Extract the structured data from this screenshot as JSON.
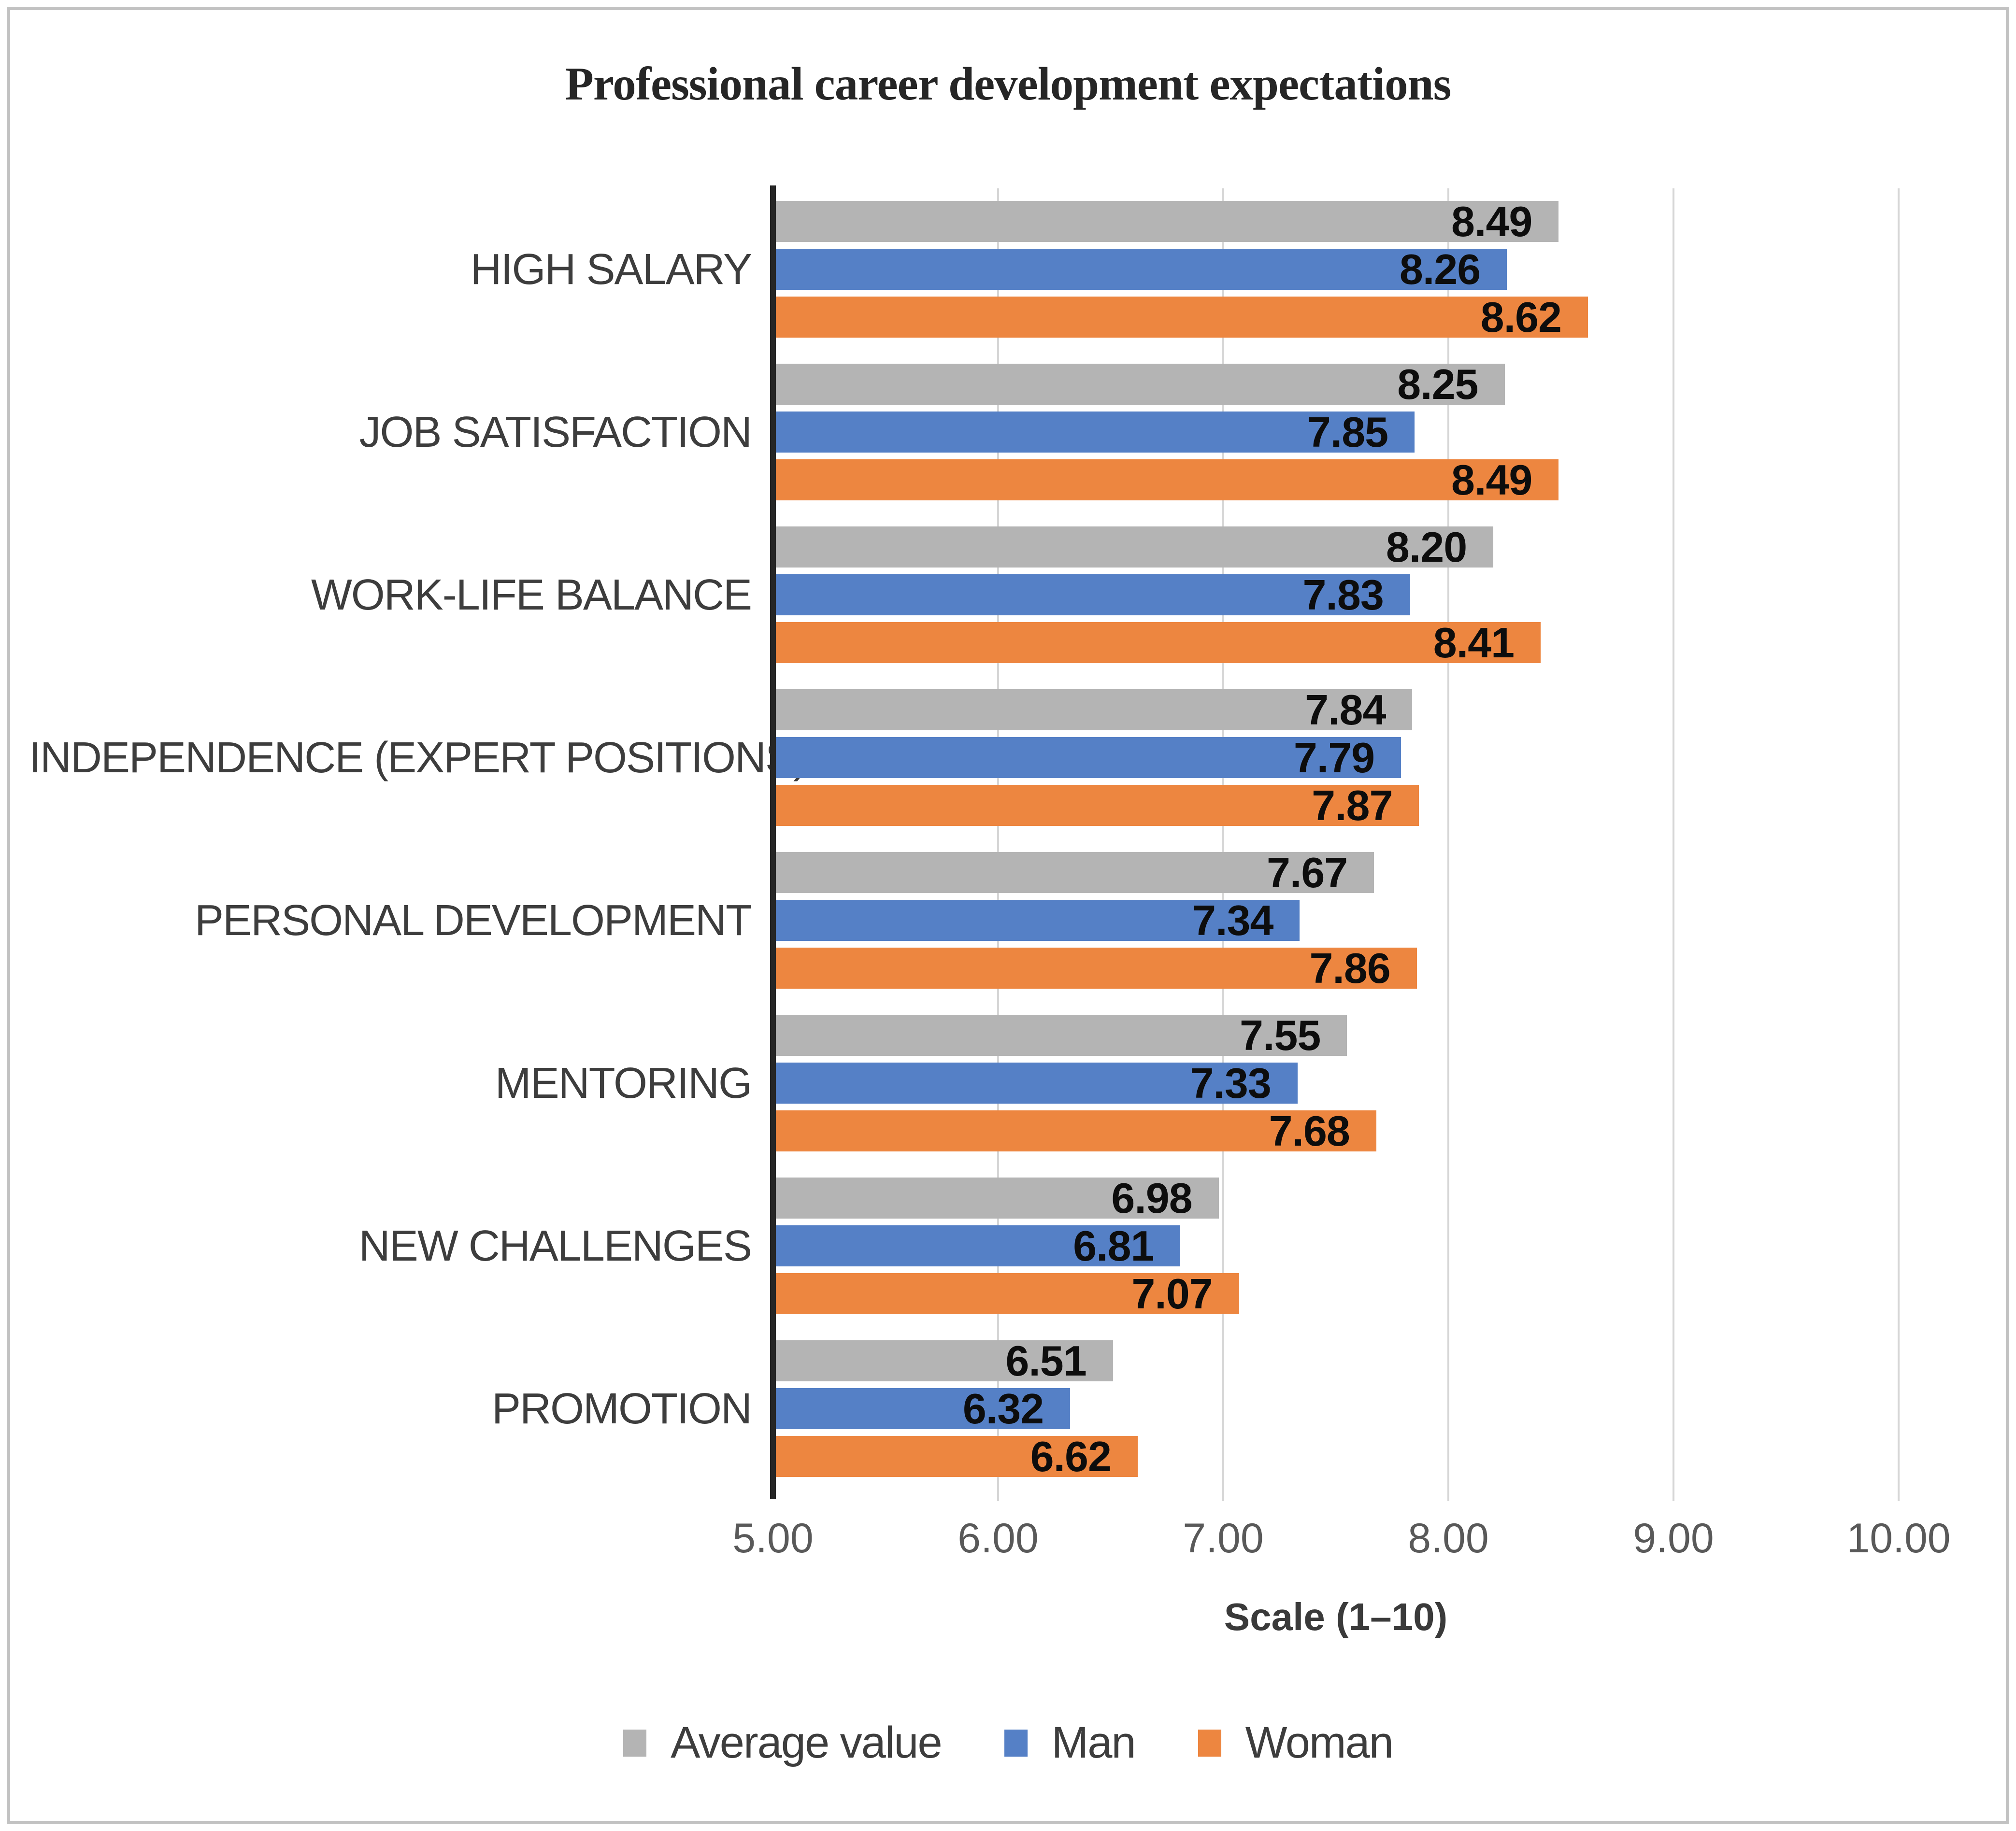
{
  "chart_data": {
    "type": "bar",
    "orientation": "horizontal",
    "title": "Professional career development expectations",
    "categories": [
      "HIGH SALARY",
      "JOB SATISFACTION",
      "WORK-LIFE BALANCE",
      "INDEPENDENCE (EXPERT POSITIONS)",
      "PERSONAL DEVELOPMENT",
      "MENTORING",
      "NEW CHALLENGES",
      "PROMOTION"
    ],
    "series": [
      {
        "name": "Average value",
        "color": "#b4b4b4",
        "values": [
          8.49,
          8.25,
          8.2,
          7.84,
          7.67,
          7.55,
          6.98,
          6.51
        ]
      },
      {
        "name": "Man",
        "color": "#5580c6",
        "values": [
          8.26,
          7.85,
          7.83,
          7.79,
          7.34,
          7.33,
          6.81,
          6.32
        ]
      },
      {
        "name": "Woman",
        "color": "#ed8640",
        "values": [
          8.62,
          8.49,
          8.41,
          7.87,
          7.86,
          7.68,
          7.07,
          6.62
        ]
      }
    ],
    "xlabel": "Scale (1–10)",
    "x_ticks": [
      "5.00",
      "6.00",
      "7.00",
      "8.00",
      "9.00",
      "10.00"
    ],
    "xlim": [
      5,
      10
    ],
    "value_labels": "inside-end, 2 decimals",
    "grid": true,
    "legend_position": "bottom"
  },
  "style": {
    "gridline_color": "#d6d6d6",
    "axis_line_color": "#262626",
    "frame_border_color": "#c2c2c2",
    "title_color": "#262626",
    "category_label_color": "#3d3d3d",
    "value_label_color": "#0d0d0d",
    "tick_label_color": "#595959"
  }
}
